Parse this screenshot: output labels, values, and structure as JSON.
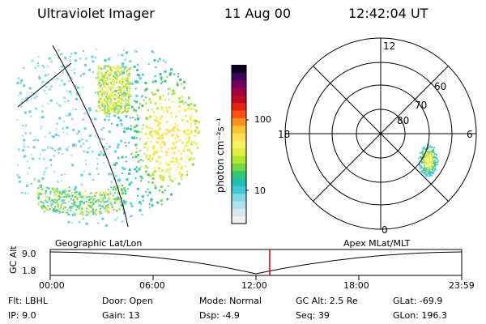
{
  "header": {
    "instrument": "Ultraviolet Imager",
    "date": "11 Aug 00",
    "time": "12:42:04 UT"
  },
  "colorbar": {
    "unit_label": "photon cm⁻²s⁻¹",
    "tick_labels": [
      "100",
      "10"
    ],
    "scale": "log",
    "colors": [
      "#f0f0f0",
      "#d8e8f0",
      "#b0e0f0",
      "#80d8e8",
      "#40c8d8",
      "#20c0b0",
      "#30c870",
      "#70d840",
      "#b0e830",
      "#e0f040",
      "#f8f060",
      "#ffe050",
      "#ffc030",
      "#ff9020",
      "#ff5010",
      "#e82010",
      "#c00820",
      "#a00040",
      "#700060",
      "#400060",
      "#100020"
    ]
  },
  "polar_plot": {
    "top_label": "12",
    "bottom_label": "0",
    "left_label": "18",
    "right_label": "6",
    "ring_labels": [
      "60",
      "70",
      "80"
    ]
  },
  "timeline": {
    "left_label": "Geographic Lat/Lon",
    "right_label": "Apex MLat/MLT",
    "axis_title": "GC Alt",
    "y_ticks": [
      "9.0",
      "1.8"
    ],
    "x_ticks": [
      "00:00",
      "06:00",
      "12:00",
      "18:00",
      "23:59"
    ],
    "marker_color": "#cc0000"
  },
  "status": {
    "flt": "Flt:  LBHL",
    "ip": "IP:  9.0",
    "door": "Door:  Open",
    "gain": "Gain:  13",
    "mode": "Mode:  Normal",
    "dsp": "Dsp:     -4.9",
    "gc_alt": "GC Alt:  2.5 Re",
    "seq": "Seq:  39",
    "glat": "GLat:  -69.9",
    "glon": "GLon:  196.3"
  }
}
